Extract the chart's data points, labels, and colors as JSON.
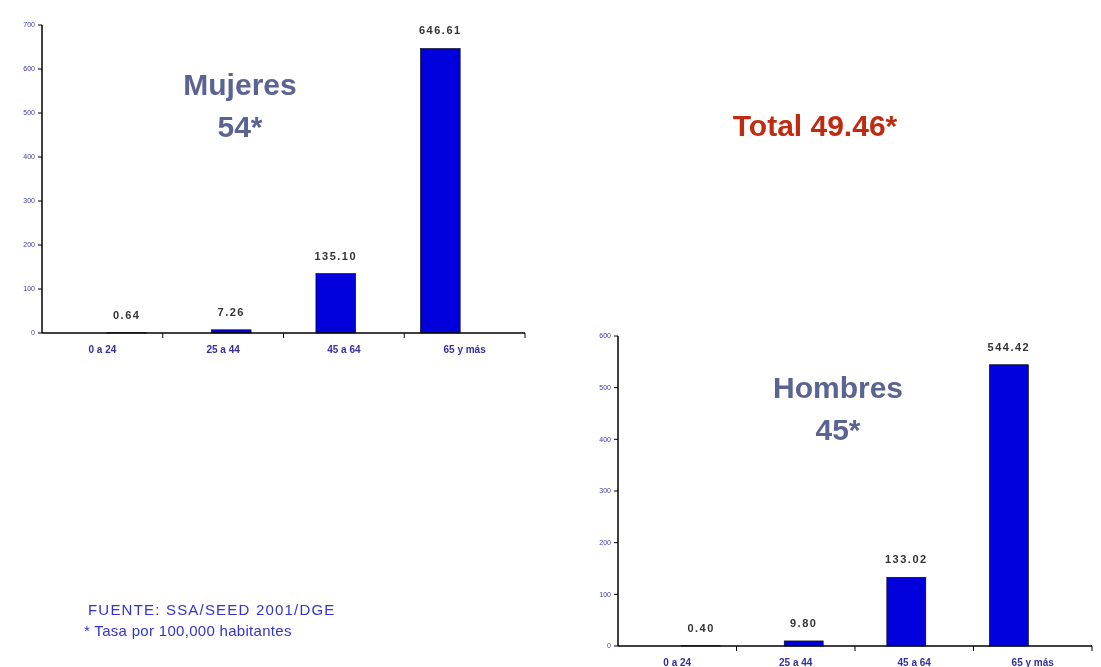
{
  "chart_data": [
    {
      "type": "bar",
      "title": "Mujeres",
      "subtitle": "54*",
      "categories": [
        "0 a 24",
        "25 a 44",
        "45 a 64",
        "65 y más"
      ],
      "values": [
        0.64,
        7.26,
        135.1,
        646.61
      ],
      "value_labels": [
        "0.64",
        "7.26",
        "135.10",
        "646.61"
      ],
      "color": "#0000dd",
      "ylim": [
        0,
        700
      ],
      "yticks": [
        0,
        100,
        200,
        300,
        400,
        500,
        600,
        700
      ],
      "grid": false,
      "annotations": [
        "Total 49.46*",
        "FUENTE: SSA/SEED 2001/DGE",
        "* Tasa por 100,000 habitantes"
      ]
    },
    {
      "type": "bar",
      "title": "Hombres",
      "subtitle": "45*",
      "categories": [
        "0 a 24",
        "25 a 44",
        "45 a 64",
        "65 y más"
      ],
      "values": [
        0.4,
        9.8,
        133.02,
        544.42
      ],
      "value_labels": [
        "0.40",
        "9.80",
        "133.02",
        "544.42"
      ],
      "color": "#0000dd",
      "ylim": [
        0,
        600
      ],
      "yticks": [
        0,
        100,
        200,
        300,
        400,
        500,
        600
      ],
      "grid": false
    }
  ]
}
